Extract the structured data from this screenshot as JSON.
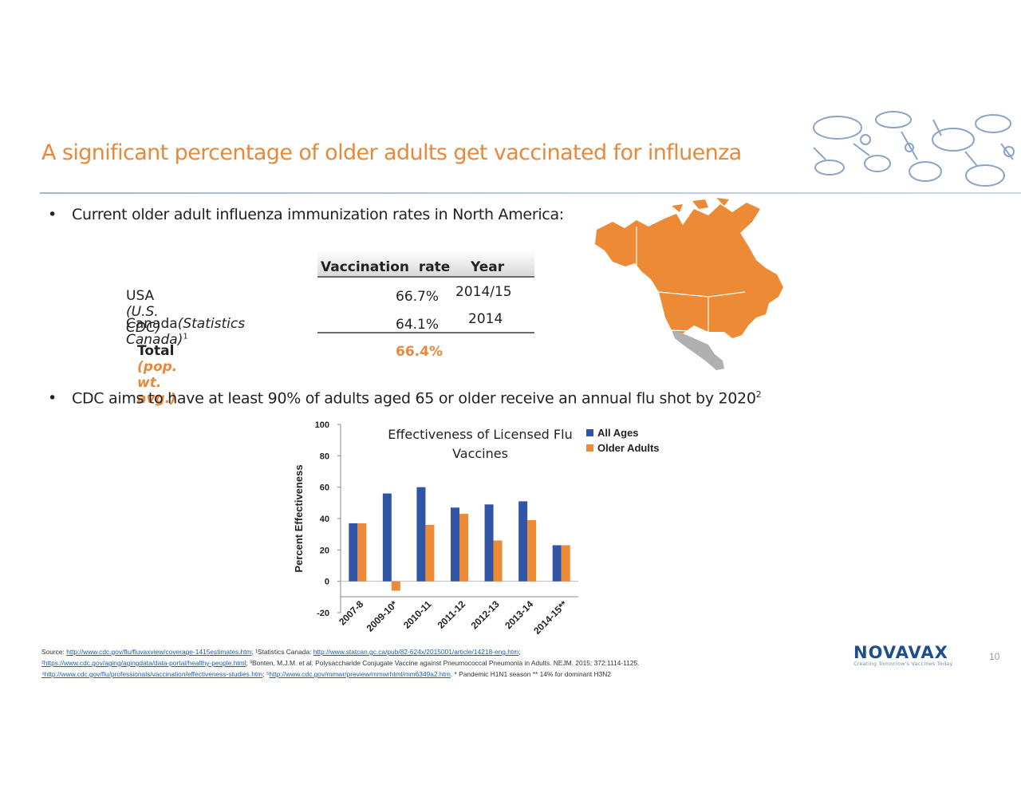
{
  "title": "A significant percentage of older adults get vaccinated for influenza",
  "colors": {
    "accent": "#e8883a",
    "series_all": "#2f55a4",
    "series_older": "#ec8a35",
    "logo": "#1f4f8b"
  },
  "bullets": {
    "b1": "Current older adult influenza immunization rates in North America:",
    "b2_text": "CDC aims to have at least 90% of adults aged 65 or older receive an annual flu shot by 2020",
    "b2_sup": "2"
  },
  "table": {
    "col_rate": "Vaccination  rate",
    "col_year": "Year",
    "rows": [
      {
        "label": "USA",
        "source": "(U.S. CDC)",
        "sup": "",
        "rate": "66.7%",
        "year": "2014/15"
      },
      {
        "label": "Canada",
        "source": "(Statistics Canada)",
        "sup": "1",
        "rate": "64.1%",
        "year": "2014"
      }
    ],
    "total": {
      "label": "Total",
      "source": "(pop. wt. avg.)",
      "rate": "66.4%"
    }
  },
  "chart_data": {
    "type": "bar",
    "title": "Effectiveness of Licensed Flu Vaccines",
    "title_lines": [
      "Effectiveness of Licensed Flu",
      "Vaccines"
    ],
    "ylabel": "Percent Effectiveness",
    "ylim": [
      -20,
      100
    ],
    "yticks": [
      "100",
      "80",
      "60",
      "40",
      "20",
      "0",
      "-20"
    ],
    "categories": [
      "2007-8",
      "2009-10*",
      "2010-11",
      "2011-12",
      "2012-13",
      "2013-14",
      "2014-15**"
    ],
    "legend_position": "top-right",
    "series": [
      {
        "name": "All Ages",
        "values": [
          37,
          56,
          60,
          47,
          49,
          51,
          23
        ]
      },
      {
        "name": "Older Adults",
        "values": [
          37,
          -6,
          36,
          43,
          26,
          39,
          23
        ]
      }
    ]
  },
  "sources": {
    "line1_prefix": "Source:",
    "line1_link1": "http://www.cdc.gov/flu/fluvaxview/coverage-1415estimates.htm",
    "line1_mid": "; ¹Statistics Canada:",
    "line1_link2": "http://www.statcan.gc.ca/pub/82-624x/2015001/article/14218-eng.htm",
    "line1_end": ";",
    "line2_link": "²https://www.cdc.gov/aging/agingdata/data-portal/healthy-people.html",
    "line2_text": "; ³Bonten, M.J.M. et al. Polysaccharide Conjugate Vaccine against Pneumococcal Pneumonia in Adults. NEJM. 2015; 372:1114-1125.",
    "line3_link1": "⁴http://www.cdc.gov/flu/professionals/vaccination/effectiveness-studies.htm",
    "line3_mid": "; ⁵",
    "line3_link2": "http://www.cdc.gov/mmwr/preview/mmwrhtml/mm6349a2.htm",
    "line3_end": ". * Pandemic H1N1 season ** 14% for dominant H3N2"
  },
  "logo": {
    "word": "NOVAVAX",
    "tagline": "Creating Tomorrow's Vaccines Today"
  },
  "page_number": "10"
}
